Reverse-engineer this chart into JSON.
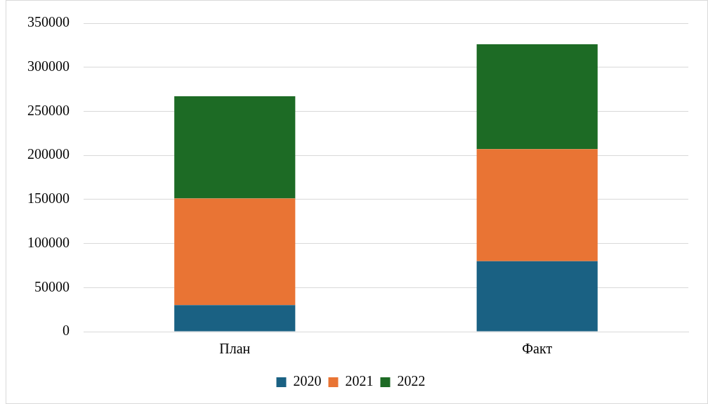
{
  "chart_data": {
    "type": "bar",
    "stacked": true,
    "categories": [
      "План",
      "Факт"
    ],
    "series": [
      {
        "name": "2020",
        "color": "#1a6183",
        "values": [
          30000,
          80000
        ]
      },
      {
        "name": "2021",
        "color": "#e97434",
        "values": [
          121000,
          127000
        ]
      },
      {
        "name": "2022",
        "color": "#1d6b25",
        "values": [
          116000,
          119000
        ]
      }
    ],
    "ylim": [
      0,
      350000
    ],
    "yticks": [
      0,
      50000,
      100000,
      150000,
      200000,
      250000,
      300000,
      350000
    ],
    "grid": "y",
    "legend": "bottom"
  }
}
